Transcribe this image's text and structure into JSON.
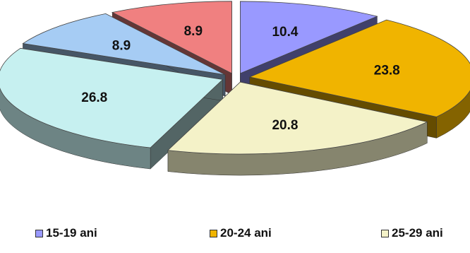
{
  "chart_data": {
    "type": "pie",
    "style": "3d-exploded",
    "slices": [
      {
        "label": "15-19 ani",
        "value": 10.4,
        "value_label": "10.4",
        "color": "#9999FF"
      },
      {
        "label": "20-24 ani",
        "value": 23.8,
        "value_label": "23.8",
        "color": "#F0B400"
      },
      {
        "label": "25-29 ani",
        "value": 20.8,
        "value_label": "20.8",
        "color": "#F4F2C8"
      },
      {
        "label": "",
        "value": 26.8,
        "value_label": "26.8",
        "color": "#C6F0F0"
      },
      {
        "label": "",
        "value": 8.9,
        "value_label": "8.9",
        "color": "#A6CCF4"
      },
      {
        "label": "",
        "value": 8.9,
        "value_label": "8.9",
        "color": "#F08080"
      }
    ],
    "legend": {
      "placement": "bottom",
      "items": [
        {
          "label": "15-19 ani",
          "color": "#9999FF"
        },
        {
          "label": "20-24 ani",
          "color": "#F0B400"
        },
        {
          "label": "25-29 ani",
          "color": "#F4F2C8"
        }
      ]
    }
  }
}
